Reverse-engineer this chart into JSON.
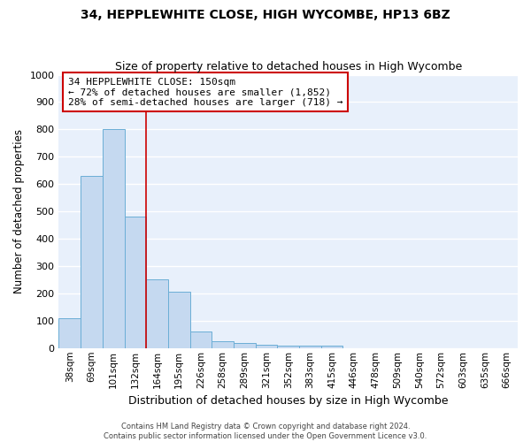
{
  "title1": "34, HEPPLEWHITE CLOSE, HIGH WYCOMBE, HP13 6BZ",
  "title2": "Size of property relative to detached houses in High Wycombe",
  "xlabel": "Distribution of detached houses by size in High Wycombe",
  "ylabel": "Number of detached properties",
  "bar_color": "#c5d9f0",
  "bar_edge_color": "#6baed6",
  "categories": [
    "38sqm",
    "69sqm",
    "101sqm",
    "132sqm",
    "164sqm",
    "195sqm",
    "226sqm",
    "258sqm",
    "289sqm",
    "321sqm",
    "352sqm",
    "383sqm",
    "415sqm",
    "446sqm",
    "478sqm",
    "509sqm",
    "540sqm",
    "572sqm",
    "603sqm",
    "635sqm",
    "666sqm"
  ],
  "values": [
    110,
    630,
    800,
    480,
    250,
    205,
    60,
    25,
    20,
    12,
    10,
    10,
    10,
    0,
    0,
    0,
    0,
    0,
    0,
    0,
    0
  ],
  "ylim": [
    0,
    1000
  ],
  "yticks": [
    0,
    100,
    200,
    300,
    400,
    500,
    600,
    700,
    800,
    900,
    1000
  ],
  "property_line_x": 3.5,
  "annotation_text": "34 HEPPLEWHITE CLOSE: 150sqm\n← 72% of detached houses are smaller (1,852)\n28% of semi-detached houses are larger (718) →",
  "annotation_box_color": "#cc0000",
  "footer1": "Contains HM Land Registry data © Crown copyright and database right 2024.",
  "footer2": "Contains public sector information licensed under the Open Government Licence v3.0.",
  "bg_color": "#e8f0fb",
  "grid_color": "#ffffff",
  "title1_fontsize": 10,
  "title2_fontsize": 9
}
